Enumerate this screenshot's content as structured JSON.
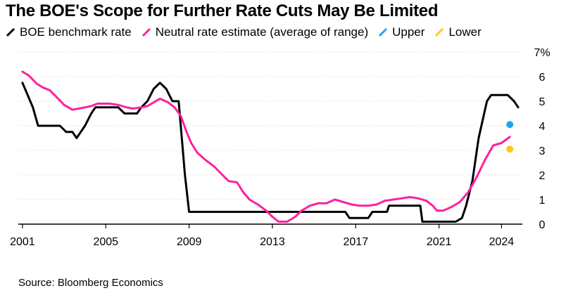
{
  "title": "The BOE's Scope for Further Rate Cuts May Be Limited",
  "source": "Source: Bloomberg Economics",
  "legend": [
    {
      "label": "BOE benchmark rate",
      "color": "#000000",
      "icon": "line-slash-icon"
    },
    {
      "label": "Neutral rate estimate (average of range)",
      "color": "#ff1f9e",
      "icon": "line-slash-icon"
    },
    {
      "label": "Upper",
      "color": "#1aa7f0",
      "icon": "line-slash-icon"
    },
    {
      "label": "Lower",
      "color": "#ffc61a",
      "icon": "line-slash-icon"
    }
  ],
  "chart_data": {
    "type": "line",
    "title": "The BOE's Scope for Further Rate Cuts May Be Limited",
    "xlabel": "",
    "ylabel": "",
    "xlim": [
      2000.8,
      2025.0
    ],
    "ylim": [
      0,
      7
    ],
    "y_unit_suffix": "%",
    "x_ticks": [
      {
        "value": 2001,
        "label": "2001"
      },
      {
        "value": 2005,
        "label": "2005"
      },
      {
        "value": 2009,
        "label": "2009"
      },
      {
        "value": 2013,
        "label": "2013"
      },
      {
        "value": 2017,
        "label": "2017"
      },
      {
        "value": 2021,
        "label": "2021"
      },
      {
        "value": 2024,
        "label": "2024"
      }
    ],
    "y_ticks": [
      {
        "value": 0,
        "label": "0"
      },
      {
        "value": 1,
        "label": "1"
      },
      {
        "value": 2,
        "label": "2"
      },
      {
        "value": 3,
        "label": "3"
      },
      {
        "value": 4,
        "label": "4"
      },
      {
        "value": 5,
        "label": "5"
      },
      {
        "value": 6,
        "label": "6"
      },
      {
        "value": 7,
        "label": "7%"
      }
    ],
    "series": [
      {
        "name": "BOE benchmark rate",
        "color": "#000000",
        "points": [
          [
            2001.0,
            5.75
          ],
          [
            2001.5,
            4.75
          ],
          [
            2001.75,
            4.0
          ],
          [
            2002.0,
            4.0
          ],
          [
            2002.8,
            4.0
          ],
          [
            2003.1,
            3.75
          ],
          [
            2003.4,
            3.75
          ],
          [
            2003.6,
            3.5
          ],
          [
            2004.0,
            4.0
          ],
          [
            2004.3,
            4.5
          ],
          [
            2004.5,
            4.75
          ],
          [
            2005.2,
            4.75
          ],
          [
            2005.6,
            4.75
          ],
          [
            2005.9,
            4.5
          ],
          [
            2006.5,
            4.5
          ],
          [
            2006.7,
            4.75
          ],
          [
            2007.0,
            5.0
          ],
          [
            2007.3,
            5.5
          ],
          [
            2007.6,
            5.75
          ],
          [
            2007.9,
            5.5
          ],
          [
            2008.2,
            5.0
          ],
          [
            2008.5,
            5.0
          ],
          [
            2008.8,
            2.0
          ],
          [
            2009.0,
            0.5
          ],
          [
            2016.5,
            0.5
          ],
          [
            2016.7,
            0.25
          ],
          [
            2017.6,
            0.25
          ],
          [
            2017.8,
            0.5
          ],
          [
            2018.5,
            0.5
          ],
          [
            2018.6,
            0.75
          ],
          [
            2020.1,
            0.75
          ],
          [
            2020.2,
            0.1
          ],
          [
            2021.8,
            0.1
          ],
          [
            2022.1,
            0.25
          ],
          [
            2022.3,
            0.75
          ],
          [
            2022.6,
            1.75
          ],
          [
            2022.9,
            3.5
          ],
          [
            2023.3,
            5.0
          ],
          [
            2023.5,
            5.25
          ],
          [
            2024.3,
            5.25
          ],
          [
            2024.6,
            5.0
          ],
          [
            2024.8,
            4.75
          ]
        ]
      },
      {
        "name": "Neutral rate estimate (average of range)",
        "color": "#ff1f9e",
        "points": [
          [
            2001.0,
            6.2
          ],
          [
            2001.3,
            6.05
          ],
          [
            2001.7,
            5.7
          ],
          [
            2002.0,
            5.55
          ],
          [
            2002.3,
            5.45
          ],
          [
            2002.6,
            5.2
          ],
          [
            2003.0,
            4.85
          ],
          [
            2003.4,
            4.65
          ],
          [
            2003.7,
            4.7
          ],
          [
            2004.0,
            4.75
          ],
          [
            2004.3,
            4.8
          ],
          [
            2004.6,
            4.9
          ],
          [
            2005.2,
            4.9
          ],
          [
            2005.6,
            4.85
          ],
          [
            2006.0,
            4.75
          ],
          [
            2006.3,
            4.7
          ],
          [
            2006.7,
            4.75
          ],
          [
            2007.0,
            4.8
          ],
          [
            2007.3,
            4.95
          ],
          [
            2007.6,
            5.1
          ],
          [
            2008.0,
            4.95
          ],
          [
            2008.3,
            4.75
          ],
          [
            2008.6,
            4.4
          ],
          [
            2008.9,
            3.7
          ],
          [
            2009.1,
            3.3
          ],
          [
            2009.4,
            2.9
          ],
          [
            2009.8,
            2.6
          ],
          [
            2010.2,
            2.35
          ],
          [
            2010.6,
            2.0
          ],
          [
            2010.9,
            1.75
          ],
          [
            2011.3,
            1.7
          ],
          [
            2011.6,
            1.3
          ],
          [
            2011.9,
            1.0
          ],
          [
            2012.3,
            0.8
          ],
          [
            2012.7,
            0.55
          ],
          [
            2013.0,
            0.3
          ],
          [
            2013.3,
            0.1
          ],
          [
            2013.7,
            0.1
          ],
          [
            2014.1,
            0.3
          ],
          [
            2014.4,
            0.55
          ],
          [
            2014.8,
            0.75
          ],
          [
            2015.2,
            0.85
          ],
          [
            2015.6,
            0.85
          ],
          [
            2016.0,
            1.0
          ],
          [
            2016.4,
            0.9
          ],
          [
            2016.8,
            0.8
          ],
          [
            2017.2,
            0.75
          ],
          [
            2017.6,
            0.75
          ],
          [
            2018.0,
            0.8
          ],
          [
            2018.4,
            0.95
          ],
          [
            2018.8,
            1.0
          ],
          [
            2019.2,
            1.05
          ],
          [
            2019.6,
            1.1
          ],
          [
            2020.0,
            1.05
          ],
          [
            2020.4,
            0.95
          ],
          [
            2020.7,
            0.75
          ],
          [
            2020.9,
            0.55
          ],
          [
            2021.2,
            0.55
          ],
          [
            2021.6,
            0.7
          ],
          [
            2022.0,
            0.9
          ],
          [
            2022.4,
            1.3
          ],
          [
            2022.8,
            1.9
          ],
          [
            2023.2,
            2.6
          ],
          [
            2023.6,
            3.2
          ],
          [
            2024.0,
            3.3
          ],
          [
            2024.4,
            3.55
          ]
        ]
      }
    ],
    "markers": [
      {
        "name": "Upper",
        "x": 2024.4,
        "y": 4.05,
        "color": "#1aa7f0"
      },
      {
        "name": "Lower",
        "x": 2024.4,
        "y": 3.05,
        "color": "#ffc61a"
      }
    ]
  }
}
